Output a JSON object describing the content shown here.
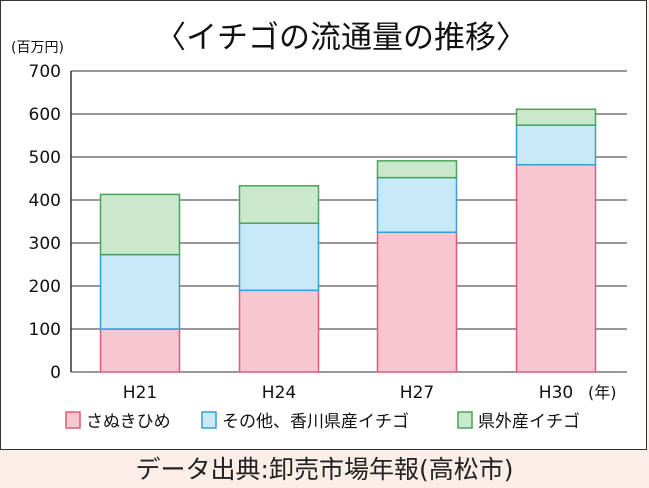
{
  "chart_data": {
    "type": "bar",
    "stacked": true,
    "title": "〈イチゴの流通量の推移〉",
    "unit_label": "(百万円)",
    "x_unit_label": "(年)",
    "categories": [
      "H21",
      "H24",
      "H27",
      "H30"
    ],
    "ylim": [
      0,
      700
    ],
    "yticks": [
      0,
      100,
      200,
      300,
      400,
      500,
      600,
      700
    ],
    "grid": true,
    "legend_position": "bottom",
    "series": [
      {
        "name": "さぬきひめ",
        "values": [
          100,
          190,
          325,
          482
        ],
        "color": "#f7c6cf",
        "edge": "#e05a7a"
      },
      {
        "name": "その他、香川県産イチゴ",
        "values": [
          173,
          156,
          127,
          92
        ],
        "color": "#c8e9f7",
        "edge": "#3a9fd8"
      },
      {
        "name": "県外産イチゴ",
        "values": [
          140,
          87,
          39,
          37
        ],
        "color": "#c9e8cc",
        "edge": "#4aa35a"
      }
    ]
  },
  "source_text": "データ出典:卸売市場年報(高松市)"
}
